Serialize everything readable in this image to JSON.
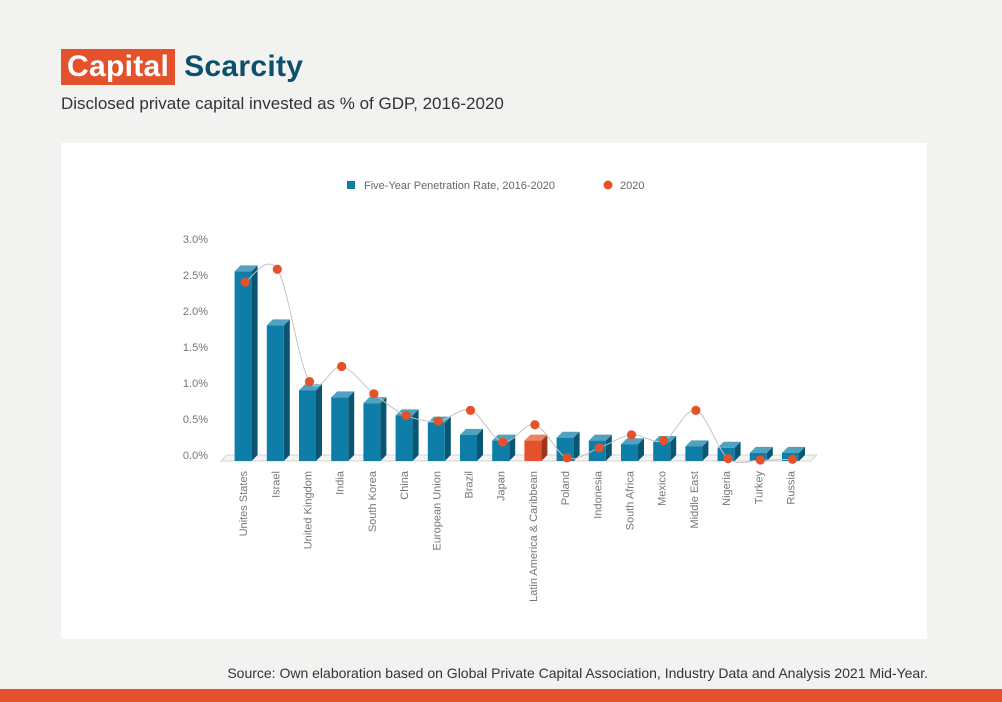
{
  "header": {
    "title_highlight": "Capital",
    "title_rest": "Scarcity",
    "subtitle": "Disclosed private capital invested as % of GDP, 2016-2020"
  },
  "footer": {
    "source": "Source: Own elaboration based on Global Private Capital Association, Industry Data and Analysis 2021 Mid-Year."
  },
  "colors": {
    "bar": "#0e7ea8",
    "bar_highlight": "#e4512a",
    "dot": "#e4512a",
    "title_highlight_bg": "#e4512a",
    "title_text": "#0e4f6b"
  },
  "chart_data": {
    "type": "bar",
    "categories": [
      "Unites States",
      "Israel",
      "United Kingdom",
      "India",
      "South Korea",
      "China",
      "European Union",
      "Brazil",
      "Japan",
      "Latin America & Caribbean",
      "Poland",
      "Indonesia",
      "South Africa",
      "Mexico",
      "Middle East",
      "Nigeria",
      "Turkey",
      "Russia"
    ],
    "series": [
      {
        "name": "Five-Year Penetration Rate, 2016-2020",
        "type": "bar",
        "values": [
          2.55,
          1.8,
          0.9,
          0.8,
          0.72,
          0.55,
          0.45,
          0.28,
          0.2,
          0.2,
          0.24,
          0.2,
          0.15,
          0.18,
          0.12,
          0.1,
          0.03,
          0.03
        ],
        "highlight_index": 9
      },
      {
        "name": "2020",
        "type": "line",
        "values": [
          2.4,
          2.58,
          1.02,
          1.23,
          0.85,
          0.55,
          0.47,
          0.62,
          0.18,
          0.42,
          -0.04,
          0.1,
          0.28,
          0.2,
          0.62,
          -0.05,
          -0.07,
          -0.06
        ]
      }
    ],
    "yticks": [
      "3.0%",
      "2.5%",
      "2.0%",
      "1.5%",
      "1.0%",
      "0.5%",
      "0.0%"
    ],
    "ylim": [
      0,
      3.0
    ],
    "legend_position": "top-center",
    "grid": false
  }
}
